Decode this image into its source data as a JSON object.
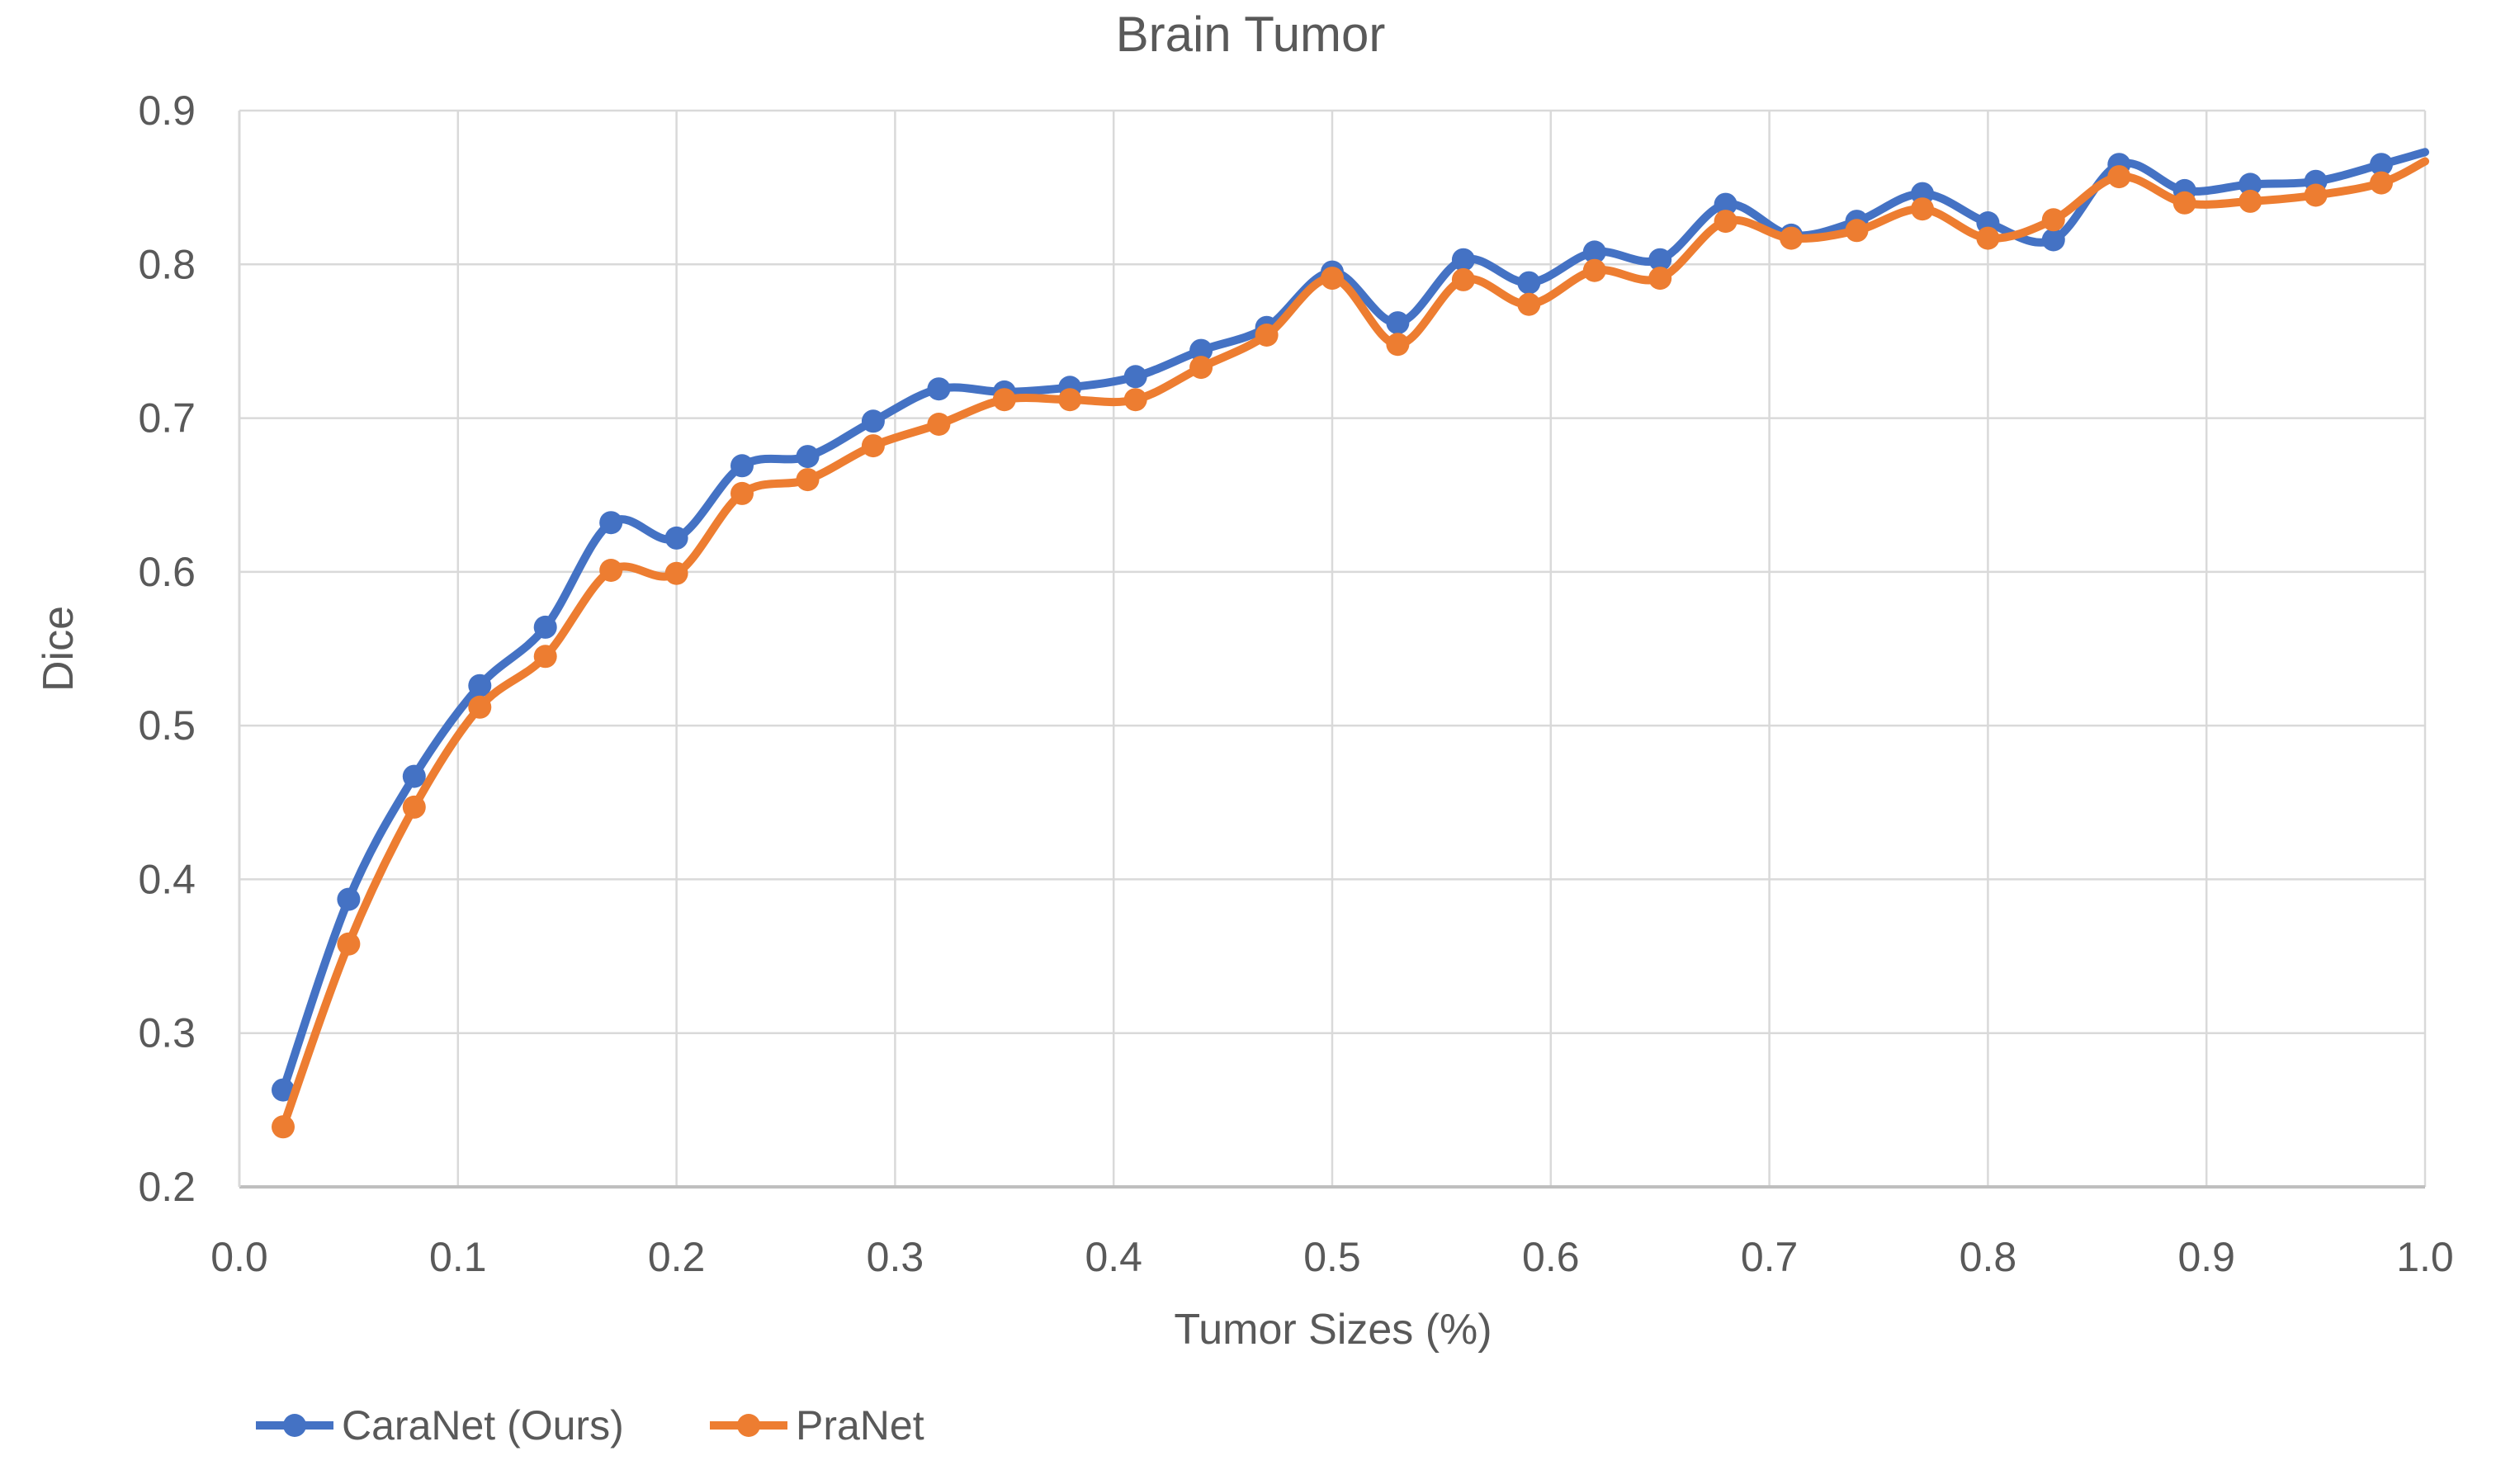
{
  "title": "Brain Tumor",
  "colors": {
    "caranet_blue": "#4472C4",
    "pranet_orange": "#ED7D31",
    "text_gray": "#595959",
    "gridline": "#D9D9D9",
    "axis_line": "#BFBFBF",
    "background": "#FFFFFF"
  },
  "x_axis": {
    "label": "Tumor Sizes (%)",
    "tick_labels": [
      "0.0",
      "0.1",
      "0.2",
      "0.3",
      "0.4",
      "0.5",
      "0.6",
      "0.7",
      "0.8",
      "0.9",
      "1.0"
    ],
    "min": 0.0,
    "max": 1.0
  },
  "y_axis": {
    "label": "Dice",
    "tick_labels": [
      "0.2",
      "0.3",
      "0.4",
      "0.5",
      "0.6",
      "0.7",
      "0.8",
      "0.9"
    ],
    "min": 0.2,
    "max": 0.9
  },
  "legend": {
    "items": [
      {
        "label": "CaraNet (Ours)",
        "color": "#4472C4"
      },
      {
        "label": "PraNet",
        "color": "#ED7D31"
      }
    ]
  },
  "chart_data": {
    "type": "line",
    "title": "Brain Tumor",
    "xlabel": "Tumor Sizes (%)",
    "ylabel": "Dice",
    "xlim": [
      0.0,
      1.0
    ],
    "ylim": [
      0.2,
      0.9
    ],
    "grid": true,
    "legend_position": "bottom-left",
    "marker": "circle",
    "smoothed_lines": true,
    "x": [
      0.02,
      0.05,
      0.08,
      0.11,
      0.14,
      0.17,
      0.2,
      0.23,
      0.26,
      0.29,
      0.32,
      0.35,
      0.38,
      0.41,
      0.44,
      0.47,
      0.5,
      0.53,
      0.56,
      0.59,
      0.62,
      0.65,
      0.68,
      0.71,
      0.74,
      0.77,
      0.8,
      0.83,
      0.86,
      0.89,
      0.92,
      0.95,
      0.98
    ],
    "series": [
      {
        "name": "CaraNet (Ours)",
        "color": "#4472C4",
        "values": [
          0.263,
          0.387,
          0.467,
          0.526,
          0.564,
          0.632,
          0.622,
          0.669,
          0.675,
          0.698,
          0.719,
          0.717,
          0.72,
          0.727,
          0.744,
          0.759,
          0.795,
          0.762,
          0.803,
          0.788,
          0.808,
          0.803,
          0.839,
          0.819,
          0.828,
          0.846,
          0.827,
          0.816,
          0.865,
          0.848,
          0.852,
          0.854,
          0.865
        ],
        "clipped_line_end": {
          "x": 1.0,
          "y": 0.873
        }
      },
      {
        "name": "PraNet",
        "color": "#ED7D31",
        "values": [
          0.239,
          0.358,
          0.447,
          0.512,
          0.545,
          0.601,
          0.599,
          0.651,
          0.66,
          0.682,
          0.696,
          0.712,
          0.712,
          0.712,
          0.733,
          0.754,
          0.791,
          0.748,
          0.79,
          0.774,
          0.796,
          0.791,
          0.828,
          0.817,
          0.822,
          0.836,
          0.817,
          0.829,
          0.857,
          0.84,
          0.841,
          0.845,
          0.853
        ],
        "clipped_line_end": {
          "x": 1.0,
          "y": 0.867
        }
      }
    ]
  }
}
